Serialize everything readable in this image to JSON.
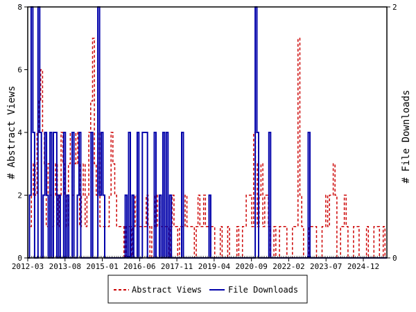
{
  "chart_data": {
    "type": "line",
    "title": "",
    "x_tick_labels": [
      "2012-03",
      "2013-08",
      "2015-01",
      "2016-06",
      "2017-11",
      "2019-04",
      "2020-09",
      "2022-02",
      "2023-07",
      "2024-12"
    ],
    "y_left": {
      "label": "# Abstract Views",
      "ticks": [
        "0",
        "2",
        "4",
        "6",
        "8"
      ],
      "range": [
        0,
        8
      ]
    },
    "y_right": {
      "label": "# File Downloads",
      "ticks": [
        "0",
        "2"
      ],
      "range": [
        0,
        2
      ]
    },
    "grid": false,
    "legend_position": "bottom-center",
    "series": [
      {
        "name": "Abstract Views",
        "axis": "left",
        "color": "#cc0000",
        "style": "dashed",
        "values": [
          0,
          1,
          2,
          3,
          2,
          4,
          5,
          6,
          4,
          3,
          1,
          3,
          2,
          1,
          2,
          3,
          1,
          2,
          4,
          3,
          2,
          1,
          3,
          4,
          2,
          3,
          4,
          3,
          1,
          2,
          3,
          1,
          2,
          4,
          5,
          7,
          3,
          2,
          4,
          1,
          1,
          1,
          1,
          1,
          2,
          4,
          3,
          2,
          1,
          1,
          1,
          1,
          0,
          1,
          1,
          1,
          0,
          1,
          2,
          1,
          1,
          1,
          1,
          1,
          2,
          1,
          0,
          1,
          1,
          2,
          1,
          2,
          1,
          1,
          1,
          1,
          0,
          1,
          2,
          1,
          1,
          0,
          1,
          1,
          1,
          2,
          1,
          1,
          1,
          1,
          0,
          1,
          2,
          1,
          1,
          2,
          1,
          1,
          1,
          1,
          1,
          0,
          0,
          0,
          1,
          0,
          0,
          0,
          1,
          0,
          0,
          0,
          0,
          1,
          0,
          0,
          1,
          1,
          2,
          2,
          2,
          1,
          4,
          3,
          1,
          2,
          3,
          1,
          2,
          2,
          1,
          0,
          0,
          1,
          0,
          0,
          1,
          1,
          1,
          1,
          0,
          0,
          0,
          1,
          1,
          1,
          7,
          2,
          1,
          0,
          0,
          0,
          1,
          1,
          1,
          1,
          0,
          0,
          0,
          1,
          1,
          2,
          1,
          2,
          2,
          3,
          2,
          0,
          0,
          1,
          1,
          2,
          1,
          0,
          0,
          0,
          1,
          1,
          1,
          0,
          0,
          0,
          0,
          1,
          0,
          0,
          0,
          1,
          1,
          1,
          0,
          0,
          1,
          0,
          0
        ]
      },
      {
        "name": "File Downloads",
        "axis": "right",
        "color": "#0000aa",
        "style": "solid",
        "values": [
          0,
          0.5,
          2,
          1,
          0,
          0,
          2,
          1,
          0,
          0.5,
          1,
          0.5,
          0,
          1,
          0,
          1,
          1,
          0,
          0.5,
          0,
          0,
          1,
          0,
          0.5,
          0,
          0,
          1,
          0,
          0,
          0.5,
          1,
          0,
          0,
          0,
          0,
          0,
          0,
          1,
          0,
          0,
          0,
          2,
          0.5,
          1,
          0.5,
          0,
          0,
          0,
          0,
          0,
          0,
          0,
          0,
          0,
          0,
          0,
          0,
          0.5,
          0,
          1,
          0,
          0.5,
          0,
          0,
          1,
          0,
          0,
          1,
          1,
          1,
          0,
          0,
          0,
          0,
          1,
          0,
          0,
          0.5,
          0,
          1,
          0,
          1,
          0,
          0.5,
          0,
          0,
          0,
          0,
          0,
          0,
          1,
          0,
          0,
          0,
          0,
          0,
          0,
          0,
          0,
          0,
          0,
          0,
          0,
          0,
          0,
          0,
          0.5,
          0,
          0,
          0,
          0,
          0,
          0,
          0,
          0,
          0,
          0,
          0,
          0,
          0,
          0,
          0,
          0,
          0,
          0,
          0,
          0,
          0,
          0,
          0,
          0,
          0,
          0,
          2,
          1,
          0,
          0,
          0,
          0,
          0,
          0,
          1,
          0,
          0,
          0,
          0,
          0,
          0,
          0,
          0,
          0,
          0,
          0,
          0,
          0,
          0,
          0,
          0,
          0,
          0,
          0,
          0,
          0,
          0,
          1,
          0,
          0,
          0,
          0,
          0,
          0,
          0,
          0,
          0,
          0,
          0,
          0,
          0,
          0,
          0,
          0,
          0,
          0,
          0,
          0,
          0,
          0,
          0,
          0,
          0,
          0,
          0,
          0,
          0,
          0,
          0,
          0,
          0,
          0,
          0,
          0,
          0,
          0,
          0,
          0,
          0,
          0,
          0,
          0,
          0,
          0
        ]
      }
    ]
  }
}
